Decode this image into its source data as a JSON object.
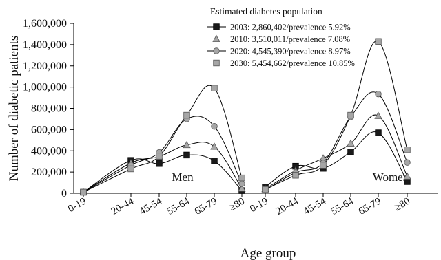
{
  "chart_data": {
    "type": "line",
    "xlabel": "Age group",
    "ylabel": "Number of diabetic patients",
    "ylim": [
      0,
      1600000
    ],
    "yticks": [
      0,
      200000,
      400000,
      600000,
      800000,
      1000000,
      1200000,
      1400000,
      1600000
    ],
    "ytick_labels": [
      "0",
      "200,000",
      "400,000",
      "600,000",
      "800,000",
      "1,000,000",
      "1,200,000",
      "1,400,000",
      "1,600,000"
    ],
    "legend": {
      "title": "Estimated diabetes population",
      "placement": "top-right"
    },
    "panels": [
      {
        "name": "Men",
        "categories": [
          "0-19",
          "20-44",
          "45-54",
          "55-64",
          "65-79",
          "≥80"
        ],
        "series": [
          {
            "name": "2003: 2,860,402/prevalence 5.92%",
            "marker": "square-filled",
            "color": "#1a1a1a",
            "values": [
              10000,
              310000,
              280000,
              360000,
              305000,
              25000
            ]
          },
          {
            "name": "2010: 3,510,011/prevalence 7.08%",
            "marker": "triangle",
            "color": "#9a9a9a",
            "values": [
              10000,
              285000,
              345000,
              455000,
              440000,
              45000
            ]
          },
          {
            "name": "2020: 4,545,390/prevalence 8.97%",
            "marker": "circle",
            "color": "#9a9a9a",
            "values": [
              10000,
              265000,
              385000,
              700000,
              630000,
              90000
            ]
          },
          {
            "name": "2030: 5,454,662/prevalence 10.85%",
            "marker": "square",
            "color": "#9a9a9a",
            "values": [
              10000,
              230000,
              350000,
              735000,
              990000,
              145000
            ]
          }
        ]
      },
      {
        "name": "Women",
        "categories": [
          "0-19",
          "20-44",
          "45-54",
          "55-64",
          "65-79",
          "≥80"
        ],
        "series": [
          {
            "name": "2003: 2,860,402/prevalence 5.92%",
            "marker": "square-filled",
            "color": "#1a1a1a",
            "values": [
              60000,
              255000,
              235000,
              390000,
              570000,
              110000
            ]
          },
          {
            "name": "2010: 3,510,011/prevalence 7.08%",
            "marker": "triangle",
            "color": "#9a9a9a",
            "values": [
              40000,
              215000,
              330000,
              470000,
              730000,
              160000
            ]
          },
          {
            "name": "2020: 4,545,390/prevalence 8.97%",
            "marker": "circle",
            "color": "#9a9a9a",
            "values": [
              30000,
              195000,
              285000,
              720000,
              935000,
              290000
            ]
          },
          {
            "name": "2030: 5,454,662/prevalence 10.85%",
            "marker": "square",
            "color": "#9a9a9a",
            "values": [
              35000,
              170000,
              265000,
              735000,
              1430000,
              410000
            ]
          }
        ]
      }
    ]
  }
}
